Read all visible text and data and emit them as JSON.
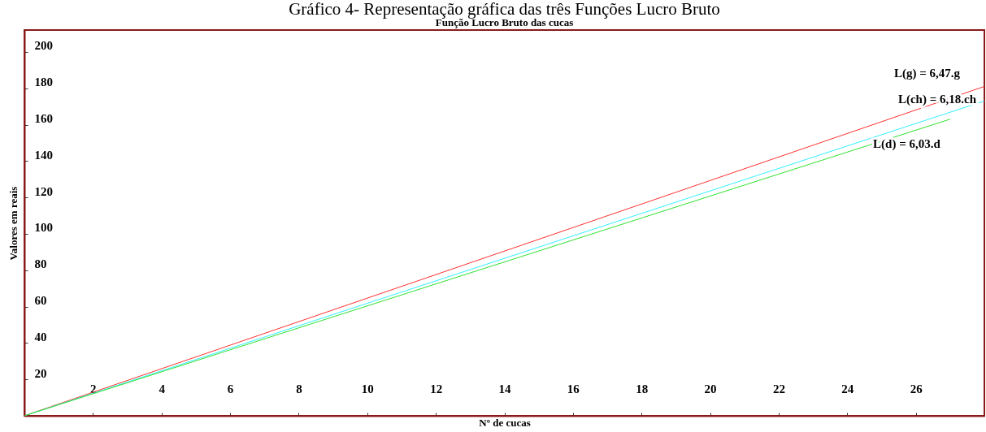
{
  "chart_data": {
    "type": "line",
    "title": "Gráfico 4- Representação gráfica das três Funções Lucro Bruto",
    "subtitle": "Função Lucro Bruto das cucas",
    "xlabel": "Nº de cucas",
    "ylabel": "Valores em reais",
    "series": [
      {
        "name": "L(g) = 6,47.g",
        "color": "#ff3030",
        "x": [
          0,
          28
        ],
        "values": [
          0,
          181
        ]
      },
      {
        "name": "L(ch) = 6,18.ch",
        "color": "#30f0ff",
        "x": [
          0,
          28
        ],
        "values": [
          0,
          173
        ]
      },
      {
        "name": "L(d) = 6,03.d",
        "color": "#30e030",
        "x": [
          0,
          27
        ],
        "values": [
          0,
          163
        ]
      }
    ],
    "xlim": [
      0,
      28
    ],
    "ylim": [
      0,
      212
    ],
    "xticks": [
      2,
      4,
      6,
      8,
      10,
      12,
      14,
      16,
      18,
      20,
      22,
      24,
      26
    ],
    "yticks": [
      20,
      40,
      60,
      80,
      100,
      120,
      140,
      160,
      180,
      200
    ],
    "grid": false,
    "marker": "none",
    "line_style": "solid"
  }
}
